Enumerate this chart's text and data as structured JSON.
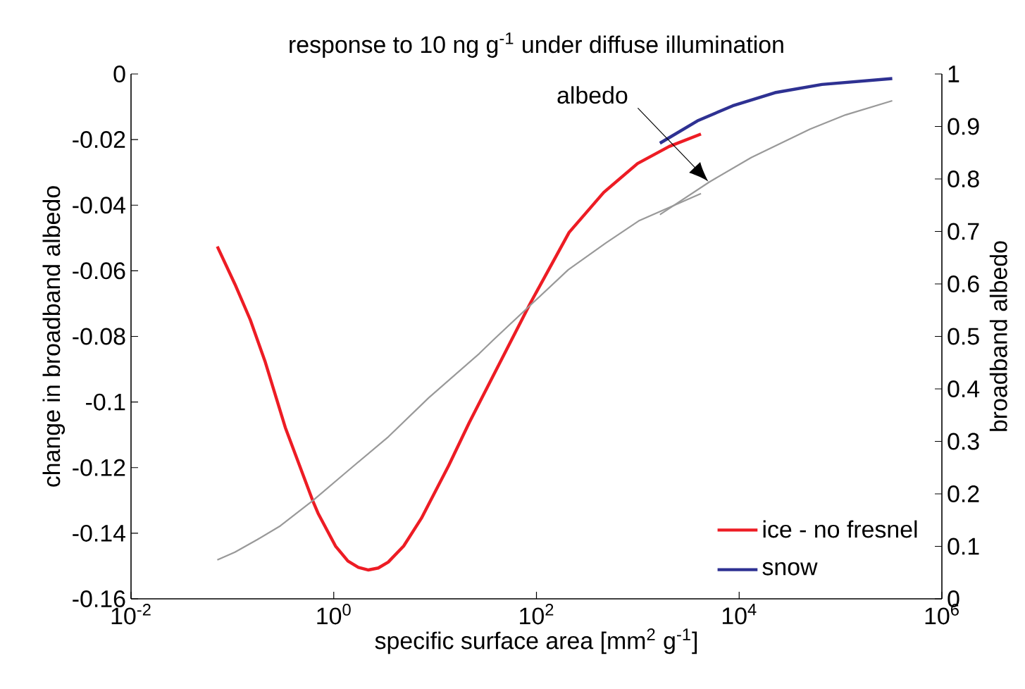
{
  "chart_data": {
    "type": "line",
    "title": "response to 10 ng g$^{-1}$ under diffuse illumination",
    "xlabel": "specific surface area [mm$^{2}$ g$^{-1}$]",
    "ylabel": "change in broadband albedo",
    "y2label": "broadband albedo",
    "log": "x",
    "xlim": [
      0.01,
      1000000
    ],
    "xticks": [
      {
        "value": 0.01,
        "label": "10$^{-2}$"
      },
      {
        "value": 1,
        "label": "10$^{0}$"
      },
      {
        "value": 100,
        "label": "10$^{2}$"
      },
      {
        "value": 10000,
        "label": "10$^{4}$"
      },
      {
        "value": 1000000,
        "label": "10$^{6}$"
      }
    ],
    "ylim": [
      -0.16,
      0
    ],
    "yticks": [
      -0.16,
      -0.14,
      -0.12,
      -0.1,
      -0.08,
      -0.06,
      -0.04,
      -0.02,
      0
    ],
    "y2lim": [
      0,
      1
    ],
    "y2ticks": [
      0,
      0.1,
      0.2,
      0.3,
      0.4,
      0.5,
      0.6,
      0.7,
      0.8,
      0.9,
      1
    ],
    "legend": "bottom right",
    "annotations": [
      "albedo"
    ],
    "series": [
      {
        "name": "ice - no fresnel",
        "color": "#ed1c24",
        "x": [
          0.071,
          0.106,
          0.15,
          0.211,
          0.333,
          0.621,
          0.7,
          1.04,
          1.38,
          1.75,
          2.2,
          2.75,
          3.45,
          4.9,
          7.31,
          13.6,
          21.7,
          87.3,
          210,
          461,
          994,
          2040,
          4200
        ],
        "values": [
          -0.0526,
          -0.0641,
          -0.0749,
          -0.0878,
          -0.1078,
          -0.1301,
          -0.1339,
          -0.1439,
          -0.1485,
          -0.1504,
          -0.1512,
          -0.1506,
          -0.1488,
          -0.1439,
          -0.1355,
          -0.1194,
          -0.1063,
          -0.0698,
          -0.0483,
          -0.0361,
          -0.0273,
          -0.0221,
          -0.0183
        ]
      },
      {
        "name": "snow",
        "color": "#2e3192",
        "x": [
          1652,
          3875,
          8630,
          22550,
          65500,
          324000
        ],
        "values": [
          -0.0211,
          -0.0143,
          -0.0097,
          -0.0057,
          -0.0032,
          -0.0014
        ]
      },
      {
        "color": "#999999",
        "axis": "y2",
        "x": [
          0.071,
          0.106,
          0.177,
          0.297,
          0.621,
          1.38,
          3.47,
          8.65,
          27.2,
          37.4,
          206,
          484,
          1020,
          4200
        ],
        "values": [
          0.074,
          0.089,
          0.113,
          0.139,
          0.187,
          0.244,
          0.309,
          0.383,
          0.467,
          0.493,
          0.627,
          0.678,
          0.72,
          0.772
        ]
      },
      {
        "color": "#999999",
        "axis": "y2",
        "x": [
          1652,
          5060,
          13200,
          50100,
          112000,
          324000
        ],
        "values": [
          0.732,
          0.794,
          0.841,
          0.895,
          0.922,
          0.949
        ]
      }
    ]
  }
}
